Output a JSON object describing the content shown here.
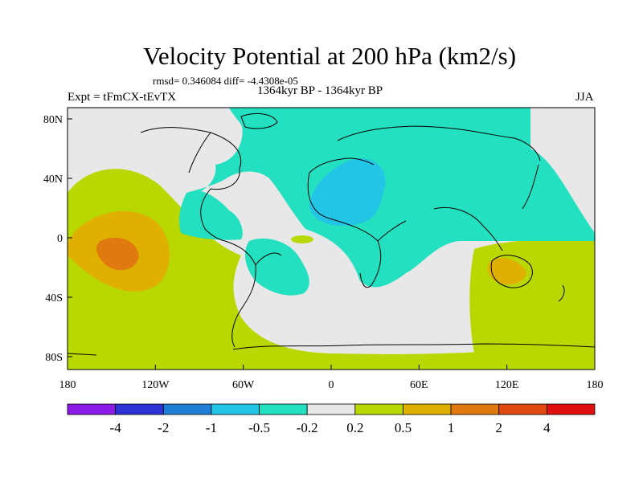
{
  "header": {
    "title": "Velocity Potential at 200 hPa (km2/s)",
    "stats": "rmsd= 0.346084 diff= -4.4308e-05",
    "expt": "Expt = tFmCX-tEvTX",
    "period": "1364kyr BP - 1364kyr BP",
    "season": "JJA"
  },
  "axes": {
    "x_ticks": [
      "180",
      "120W",
      "60W",
      "0",
      "60E",
      "120E",
      "180"
    ],
    "y_ticks": [
      "80N",
      "40N",
      "0",
      "40S",
      "80S"
    ]
  },
  "colorbar": {
    "labels": [
      "-4",
      "-2",
      "-1",
      "-0.5",
      "-0.2",
      "0.2",
      "0.5",
      "1",
      "2",
      "4"
    ],
    "colors": [
      "#8b1ae6",
      "#2e33d6",
      "#1f7ed6",
      "#22c5e6",
      "#22e0c0",
      "#e8e8e8",
      "#b8d800",
      "#e0b000",
      "#e07a10",
      "#e04a10",
      "#e01010"
    ]
  },
  "map": {
    "colors": {
      "neutral": "#e8e8e8",
      "neg_0_2": "#22e0c0",
      "neg_0_5": "#22c5e6",
      "pos_0_2": "#b8d800",
      "pos_0_5": "#e0b000",
      "pos_1": "#e07a10",
      "coast": "#000000"
    }
  }
}
